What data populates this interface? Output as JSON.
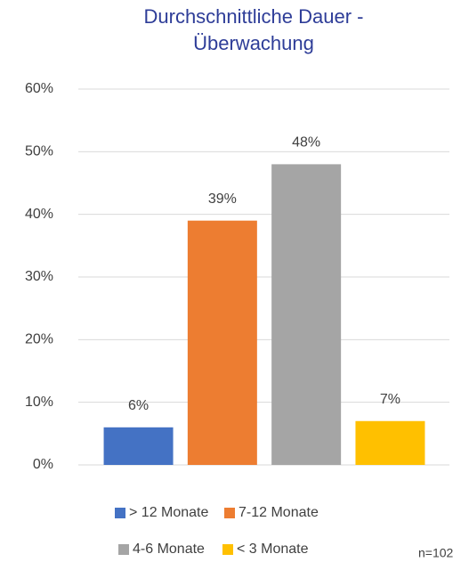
{
  "chart_data": {
    "type": "bar",
    "title": "Durchschnittliche Dauer - Überwachung",
    "series": [
      {
        "name": "> 12 Monate",
        "color": "#4472c4",
        "values": [
          6
        ],
        "value_labels": [
          "6%"
        ]
      },
      {
        "name": "7-12 Monate",
        "color": "#ed7d31",
        "values": [
          39
        ],
        "value_labels": [
          "39%"
        ]
      },
      {
        "name": "4-6 Monate",
        "color": "#a5a5a5",
        "values": [
          48
        ],
        "value_labels": [
          "48%"
        ]
      },
      {
        "name": "< 3 Monate",
        "color": "#ffc000",
        "values": [
          7
        ],
        "value_labels": [
          "7%"
        ]
      }
    ],
    "ylim": [
      0,
      60
    ],
    "yticks": [
      {
        "value": 0,
        "label": "0%"
      },
      {
        "value": 10,
        "label": "10%"
      },
      {
        "value": 20,
        "label": "20%"
      },
      {
        "value": 30,
        "label": "30%"
      },
      {
        "value": 40,
        "label": "40%"
      },
      {
        "value": 50,
        "label": "50%"
      },
      {
        "value": 60,
        "label": "60%"
      }
    ],
    "grid": true,
    "legend": "bottom",
    "annotation": "n=102"
  }
}
